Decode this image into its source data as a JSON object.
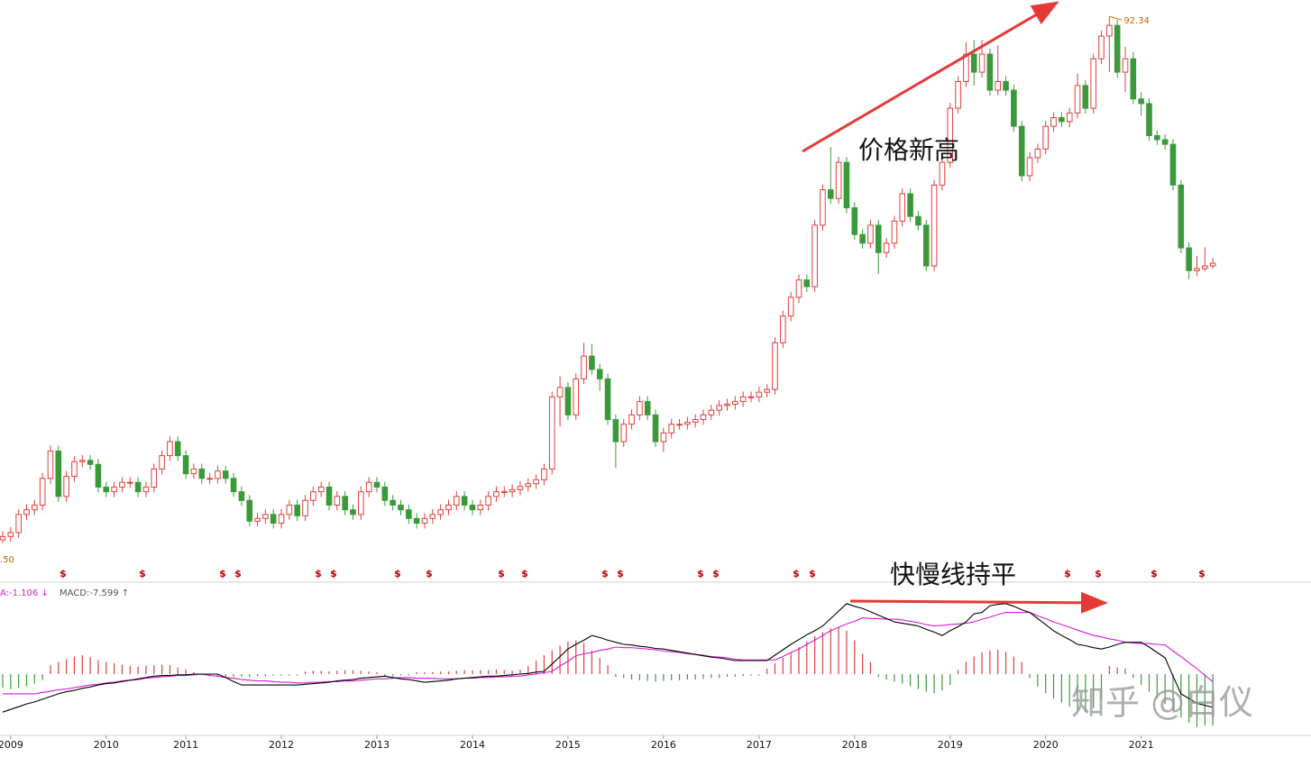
{
  "chart_data": [
    {
      "type": "candlestick",
      "up_color": "#e0403c",
      "down_color": "#3a9a3a",
      "xlim": [
        -0.34,
        164.33
      ],
      "ylim": [
        7.8,
        94.8
      ],
      "open": [
        14.0,
        14.5,
        15.1,
        17.8,
        18.5,
        19.2,
        23.2,
        27.3,
        20.5,
        23.5,
        25.7,
        25.9,
        25.3,
        21.9,
        21.2,
        21.9,
        22.6,
        22.6,
        21.2,
        21.9,
        24.6,
        26.6,
        28.7,
        26.6,
        23.9,
        24.6,
        23.2,
        23.2,
        24.3,
        23.2,
        21.2,
        19.9,
        16.8,
        17.2,
        17.8,
        16.5,
        17.8,
        19.2,
        17.6,
        19.9,
        21.2,
        21.9,
        19.2,
        20.5,
        18.5,
        17.8,
        21.2,
        22.6,
        21.9,
        19.9,
        19.2,
        18.5,
        17.2,
        16.5,
        17.2,
        17.8,
        18.5,
        19.2,
        20.5,
        19.2,
        18.5,
        19.2,
        20.5,
        21.2,
        21.2,
        21.5,
        22.0,
        22.4,
        23.0,
        24.6,
        35.4,
        36.8,
        32.7,
        38.1,
        41.5,
        39.5,
        38.1,
        32.0,
        28.7,
        31.3,
        32.7,
        34.7,
        32.7,
        28.7,
        30.0,
        31.3,
        31.3,
        31.6,
        32.0,
        32.7,
        33.4,
        34.1,
        34.3,
        34.7,
        35.4,
        35.4,
        36.1,
        36.5,
        43.5,
        47.5,
        50.3,
        52.9,
        51.9,
        61.1,
        66.4,
        65.1,
        70.5,
        63.7,
        59.7,
        58.4,
        61.1,
        57.0,
        58.4,
        61.7,
        65.8,
        62.4,
        61.1,
        55.0,
        67.1,
        70.5,
        78.6,
        82.6,
        86.7,
        84.0,
        86.7,
        81.3,
        82.6,
        81.3,
        75.9,
        68.5,
        71.2,
        72.5,
        75.9,
        77.2,
        76.6,
        77.9,
        82.0,
        78.6,
        86.0,
        89.4,
        91.0,
        84.0,
        86.0,
        80.0,
        79.3,
        74.5,
        73.9,
        73.2,
        67.1,
        57.7,
        54.3,
        54.6,
        55.0
      ],
      "high": [
        15.3,
        15.9,
        18.6,
        19.3,
        20.0,
        24.0,
        28.1,
        28.1,
        24.3,
        26.5,
        26.7,
        26.7,
        26.1,
        22.7,
        22.7,
        23.4,
        23.4,
        23.4,
        22.7,
        25.4,
        27.4,
        29.5,
        29.5,
        27.4,
        25.4,
        25.4,
        24.0,
        25.1,
        25.1,
        24.0,
        22.0,
        20.7,
        18.0,
        18.6,
        18.6,
        18.6,
        20.0,
        20.0,
        20.7,
        22.0,
        22.7,
        22.7,
        21.3,
        21.3,
        19.3,
        22.0,
        23.4,
        23.4,
        22.7,
        20.7,
        20.0,
        19.3,
        18.0,
        18.0,
        18.6,
        19.3,
        20.0,
        21.3,
        21.3,
        20.0,
        20.0,
        21.3,
        22.0,
        22.0,
        22.3,
        22.8,
        23.2,
        23.8,
        25.4,
        36.2,
        38.5,
        37.6,
        38.9,
        43.5,
        43.3,
        40.3,
        38.9,
        32.8,
        32.1,
        33.5,
        35.5,
        35.5,
        33.5,
        30.8,
        32.1,
        32.1,
        32.4,
        32.8,
        33.5,
        34.2,
        34.9,
        35.1,
        35.5,
        36.2,
        36.2,
        36.9,
        37.3,
        44.3,
        48.3,
        51.1,
        53.7,
        53.7,
        61.9,
        67.2,
        72.8,
        71.3,
        71.3,
        64.5,
        60.5,
        61.9,
        61.9,
        59.2,
        62.5,
        66.6,
        66.6,
        63.2,
        61.9,
        67.9,
        71.3,
        79.4,
        83.4,
        88.5,
        88.8,
        88.8,
        87.5,
        88.0,
        83.4,
        82.1,
        76.7,
        72.0,
        73.3,
        76.7,
        78.0,
        78.0,
        78.7,
        83.8,
        82.8,
        86.8,
        90.2,
        92.34,
        91.8,
        87.8,
        87.0,
        81.0,
        80.1,
        75.3,
        74.7,
        74.0,
        67.9,
        58.5,
        56.5,
        57.8,
        56.2
      ],
      "low": [
        13.5,
        13.7,
        14.3,
        17.0,
        17.7,
        18.4,
        22.4,
        19.7,
        19.7,
        22.7,
        24.9,
        24.5,
        21.1,
        20.4,
        20.4,
        21.1,
        21.8,
        20.4,
        20.4,
        21.1,
        23.8,
        25.8,
        25.8,
        23.1,
        23.1,
        22.4,
        22.4,
        22.4,
        22.4,
        20.4,
        19.1,
        16.0,
        16.0,
        16.4,
        15.7,
        15.7,
        17.0,
        16.8,
        16.8,
        19.1,
        20.4,
        18.4,
        18.4,
        17.7,
        17.0,
        17.0,
        20.4,
        21.1,
        19.1,
        18.4,
        17.7,
        16.4,
        15.7,
        15.7,
        16.4,
        17.0,
        17.7,
        18.4,
        18.4,
        17.7,
        17.7,
        18.4,
        19.7,
        20.4,
        20.4,
        20.7,
        21.2,
        21.6,
        22.2,
        23.8,
        31.0,
        31.9,
        31.9,
        37.3,
        38.7,
        36.3,
        31.2,
        24.8,
        27.9,
        30.5,
        31.9,
        31.9,
        27.9,
        27.1,
        29.2,
        30.5,
        30.5,
        30.8,
        31.2,
        31.9,
        32.6,
        33.3,
        33.5,
        33.9,
        34.6,
        34.6,
        35.3,
        35.7,
        42.7,
        46.7,
        49.5,
        51.1,
        51.1,
        60.3,
        64.3,
        64.3,
        62.9,
        58.9,
        57.6,
        57.6,
        53.8,
        56.2,
        57.6,
        60.9,
        61.6,
        60.3,
        54.2,
        54.2,
        66.3,
        69.7,
        77.8,
        81.8,
        82.0,
        83.2,
        80.5,
        80.5,
        80.5,
        75.1,
        67.7,
        67.7,
        70.4,
        71.7,
        75.1,
        75.8,
        75.8,
        77.1,
        77.8,
        77.8,
        85.2,
        84.0,
        83.2,
        81.0,
        79.2,
        77.5,
        73.7,
        73.1,
        72.4,
        66.3,
        56.9,
        53.0,
        53.5,
        54.2,
        54.6
      ],
      "close": [
        14.5,
        15.1,
        17.8,
        18.5,
        19.2,
        23.2,
        27.3,
        20.5,
        23.5,
        25.7,
        25.9,
        25.3,
        21.9,
        21.2,
        21.9,
        22.6,
        22.6,
        21.2,
        21.9,
        24.6,
        26.6,
        28.7,
        26.6,
        23.9,
        24.6,
        23.2,
        23.2,
        24.3,
        23.2,
        21.2,
        19.9,
        16.8,
        17.2,
        17.8,
        16.5,
        17.8,
        19.2,
        17.6,
        19.9,
        21.2,
        21.9,
        19.2,
        20.5,
        18.5,
        17.8,
        21.2,
        22.6,
        21.9,
        19.9,
        19.2,
        18.5,
        17.2,
        16.5,
        17.2,
        17.8,
        18.5,
        19.2,
        20.5,
        19.2,
        18.5,
        19.2,
        20.5,
        21.2,
        21.2,
        21.5,
        22.0,
        22.4,
        23.0,
        24.6,
        35.4,
        36.8,
        32.7,
        38.1,
        41.5,
        39.5,
        38.1,
        32.0,
        28.7,
        31.3,
        32.7,
        34.7,
        32.7,
        28.7,
        30.0,
        31.3,
        31.3,
        31.6,
        32.0,
        32.7,
        33.4,
        34.1,
        34.3,
        34.7,
        35.4,
        35.4,
        36.1,
        36.5,
        43.5,
        47.5,
        50.3,
        52.9,
        51.9,
        61.1,
        66.4,
        65.1,
        70.5,
        63.7,
        59.7,
        58.4,
        61.1,
        57.0,
        58.4,
        61.7,
        65.8,
        62.4,
        61.1,
        55.0,
        67.1,
        70.5,
        78.6,
        82.6,
        86.7,
        84.0,
        86.7,
        81.3,
        82.6,
        81.3,
        75.9,
        68.5,
        71.2,
        72.5,
        75.9,
        77.2,
        76.6,
        77.9,
        82.0,
        78.6,
        86.0,
        89.4,
        91.0,
        84.0,
        86.0,
        80.0,
        79.3,
        74.5,
        73.9,
        73.2,
        67.1,
        57.7,
        54.3,
        54.6,
        55.0,
        55.4
      ],
      "low_label": ".50",
      "event_label": "$",
      "annotation": "价格新高"
    },
    {
      "type": "macd",
      "xlim": [
        -0.34,
        164.33
      ],
      "ylim": [
        -8.9,
        13.3
      ],
      "dif_color": "#000000",
      "dea_color": "#d81bd8",
      "up_color": "#e0403c",
      "down_color": "#3a9a3a",
      "legend": [
        "A:-1.106 ↓",
        "MACD:-7.599 ↑"
      ],
      "dif": [
        -5.6,
        -5.2,
        -4.8,
        -4.4,
        -4.1,
        -3.7,
        -3.3,
        -2.9,
        -2.6,
        -2.4,
        -2.1,
        -1.9,
        -1.6,
        -1.4,
        -1.3,
        -1.1,
        -0.9,
        -0.7,
        -0.5,
        -0.3,
        -0.2,
        -0.2,
        -0.1,
        -0.1,
        0.0,
        0.0,
        0.0,
        0.0,
        -0.5,
        -1.1,
        -1.6,
        -1.6,
        -1.6,
        -1.6,
        -1.6,
        -1.6,
        -1.6,
        -1.6,
        -1.5,
        -1.4,
        -1.3,
        -1.2,
        -1.0,
        -0.9,
        -0.8,
        -0.6,
        -0.5,
        -0.4,
        -0.3,
        -0.5,
        -0.7,
        -0.8,
        -1.0,
        -1.2,
        -1.1,
        -1.0,
        -0.9,
        -0.7,
        -0.6,
        -0.5,
        -0.4,
        -0.3,
        -0.3,
        -0.2,
        -0.1,
        0.0,
        0.1,
        0.3,
        0.4,
        1.5,
        2.6,
        3.7,
        4.4,
        5.0,
        5.7,
        5.4,
        5.0,
        4.7,
        4.4,
        4.3,
        4.1,
        4.0,
        3.8,
        3.7,
        3.5,
        3.3,
        3.1,
        2.9,
        2.7,
        2.5,
        2.4,
        2.2,
        2.0,
        2.0,
        2.0,
        2.0,
        2.0,
        2.8,
        3.6,
        4.4,
        5.1,
        5.8,
        6.4,
        7.1,
        8.2,
        9.3,
        10.4,
        10.0,
        9.7,
        9.2,
        8.7,
        8.2,
        7.7,
        7.5,
        7.3,
        7.1,
        6.6,
        6.2,
        5.7,
        6.4,
        7.0,
        7.7,
        8.9,
        9.1,
        10.1,
        10.3,
        10.4,
        10.0,
        9.5,
        9.1,
        8.2,
        7.3,
        6.4,
        5.7,
        5.1,
        4.4,
        4.2,
        3.9,
        3.7,
        4.0,
        4.4,
        4.7,
        4.7,
        4.7,
        4.0,
        3.2,
        2.4,
        -0.3,
        -2.9,
        -3.6,
        -4.3,
        -4.6,
        -4.9
      ],
      "dea": [
        -2.9,
        -2.9,
        -2.9,
        -2.9,
        -2.9,
        -2.7,
        -2.5,
        -2.3,
        -2.2,
        -2.0,
        -1.8,
        -1.6,
        -1.5,
        -1.3,
        -1.2,
        -1.0,
        -0.9,
        -0.8,
        -0.6,
        -0.5,
        -0.4,
        -0.3,
        -0.2,
        -0.2,
        -0.1,
        0.0,
        -0.2,
        -0.3,
        -0.5,
        -0.6,
        -0.8,
        -0.9,
        -1.0,
        -1.0,
        -1.1,
        -1.2,
        -1.2,
        -1.3,
        -1.3,
        -1.2,
        -1.2,
        -1.1,
        -1.1,
        -1.0,
        -1.0,
        -0.9,
        -0.8,
        -0.7,
        -0.7,
        -0.6,
        -0.5,
        -0.5,
        -0.6,
        -0.6,
        -0.6,
        -0.7,
        -0.7,
        -0.7,
        -0.6,
        -0.6,
        -0.5,
        -0.5,
        -0.4,
        -0.4,
        -0.3,
        -0.3,
        -0.1,
        0.0,
        0.2,
        0.4,
        1.2,
        1.9,
        2.7,
        3.0,
        3.2,
        3.5,
        3.7,
        4.0,
        3.9,
        3.9,
        3.8,
        3.7,
        3.6,
        3.4,
        3.3,
        3.2,
        3.0,
        2.9,
        2.8,
        2.6,
        2.5,
        2.4,
        2.2,
        2.1,
        2.1,
        2.1,
        2.1,
        2.1,
        2.6,
        3.2,
        3.7,
        4.4,
        5.0,
        5.7,
        6.4,
        6.9,
        7.4,
        7.8,
        8.3,
        8.2,
        8.2,
        8.1,
        8.1,
        8.0,
        7.8,
        7.6,
        7.3,
        7.1,
        7.2,
        7.3,
        7.4,
        7.5,
        7.7,
        8.1,
        8.4,
        8.8,
        9.1,
        9.1,
        9.1,
        9.1,
        8.6,
        8.2,
        7.7,
        7.3,
        6.9,
        6.5,
        6.1,
        5.7,
        5.5,
        5.2,
        5.0,
        4.7,
        4.6,
        4.5,
        4.5,
        4.4,
        4.3,
        3.4,
        2.6,
        1.7,
        0.8,
        -0.2,
        -1.106
      ],
      "hist": [
        -2.0,
        -2.2,
        -2.0,
        -1.8,
        -1.4,
        -0.9,
        1.3,
        1.8,
        2.2,
        2.6,
        2.8,
        2.5,
        2.1,
        1.8,
        1.6,
        1.4,
        1.2,
        1.1,
        1.2,
        1.3,
        1.4,
        1.3,
        1.0,
        0.7,
        0.3,
        -0.2,
        -0.3,
        -0.4,
        -0.4,
        -0.4,
        -0.4,
        -0.4,
        -0.3,
        -0.3,
        -0.2,
        -0.2,
        -0.2,
        -0.2,
        0.4,
        0.5,
        0.5,
        0.4,
        0.5,
        0.6,
        0.6,
        0.5,
        0.4,
        0.3,
        -0.3,
        -0.3,
        -0.2,
        -0.2,
        0.3,
        0.3,
        0.3,
        0.4,
        0.4,
        0.5,
        0.6,
        0.6,
        0.6,
        0.6,
        0.7,
        0.6,
        0.5,
        0.7,
        1.2,
        2.0,
        2.8,
        3.5,
        4.2,
        4.8,
        5.0,
        4.6,
        3.5,
        2.4,
        1.3,
        -0.4,
        -0.6,
        -0.8,
        -0.9,
        -1.0,
        -1.1,
        -1.0,
        -0.9,
        -0.9,
        -0.8,
        -0.8,
        -0.7,
        -0.6,
        -0.6,
        -0.4,
        -0.4,
        -0.3,
        -0.2,
        -0.2,
        0.8,
        1.6,
        2.4,
        3.2,
        4.0,
        4.8,
        5.6,
        6.2,
        6.8,
        7.0,
        6.4,
        5.0,
        3.0,
        1.8,
        -0.4,
        -0.8,
        -1.1,
        -1.4,
        -1.8,
        -2.2,
        -2.6,
        -2.8,
        -2.4,
        -1.6,
        0.6,
        1.8,
        2.6,
        3.2,
        3.5,
        3.6,
        3.3,
        2.6,
        1.8,
        -0.6,
        -1.8,
        -2.8,
        -3.6,
        -4.2,
        -4.8,
        -5.4,
        -5.6,
        -5.0,
        -3.8,
        1.2,
        1.0,
        0.8,
        -0.6,
        -1.6,
        -2.6,
        -3.6,
        -4.4,
        -5.4,
        -6.4,
        -7.2,
        -7.8,
        -7.6,
        -7.599
      ],
      "xticks": [
        {
          "value": 1,
          "label": "2009"
        },
        {
          "value": 13,
          "label": "2010"
        },
        {
          "value": 23,
          "label": "2011"
        },
        {
          "value": 35,
          "label": "2012"
        },
        {
          "value": 47,
          "label": "2013"
        },
        {
          "value": 59,
          "label": "2014"
        },
        {
          "value": 71,
          "label": "2015"
        },
        {
          "value": 83,
          "label": "2016"
        },
        {
          "value": 95,
          "label": "2017"
        },
        {
          "value": 107,
          "label": "2018"
        },
        {
          "value": 119,
          "label": "2019"
        },
        {
          "value": 131,
          "label": "2020"
        },
        {
          "value": 143,
          "label": "2021"
        }
      ],
      "annotation": "快慢线持平"
    }
  ],
  "watermark": "知乎 @白仪"
}
